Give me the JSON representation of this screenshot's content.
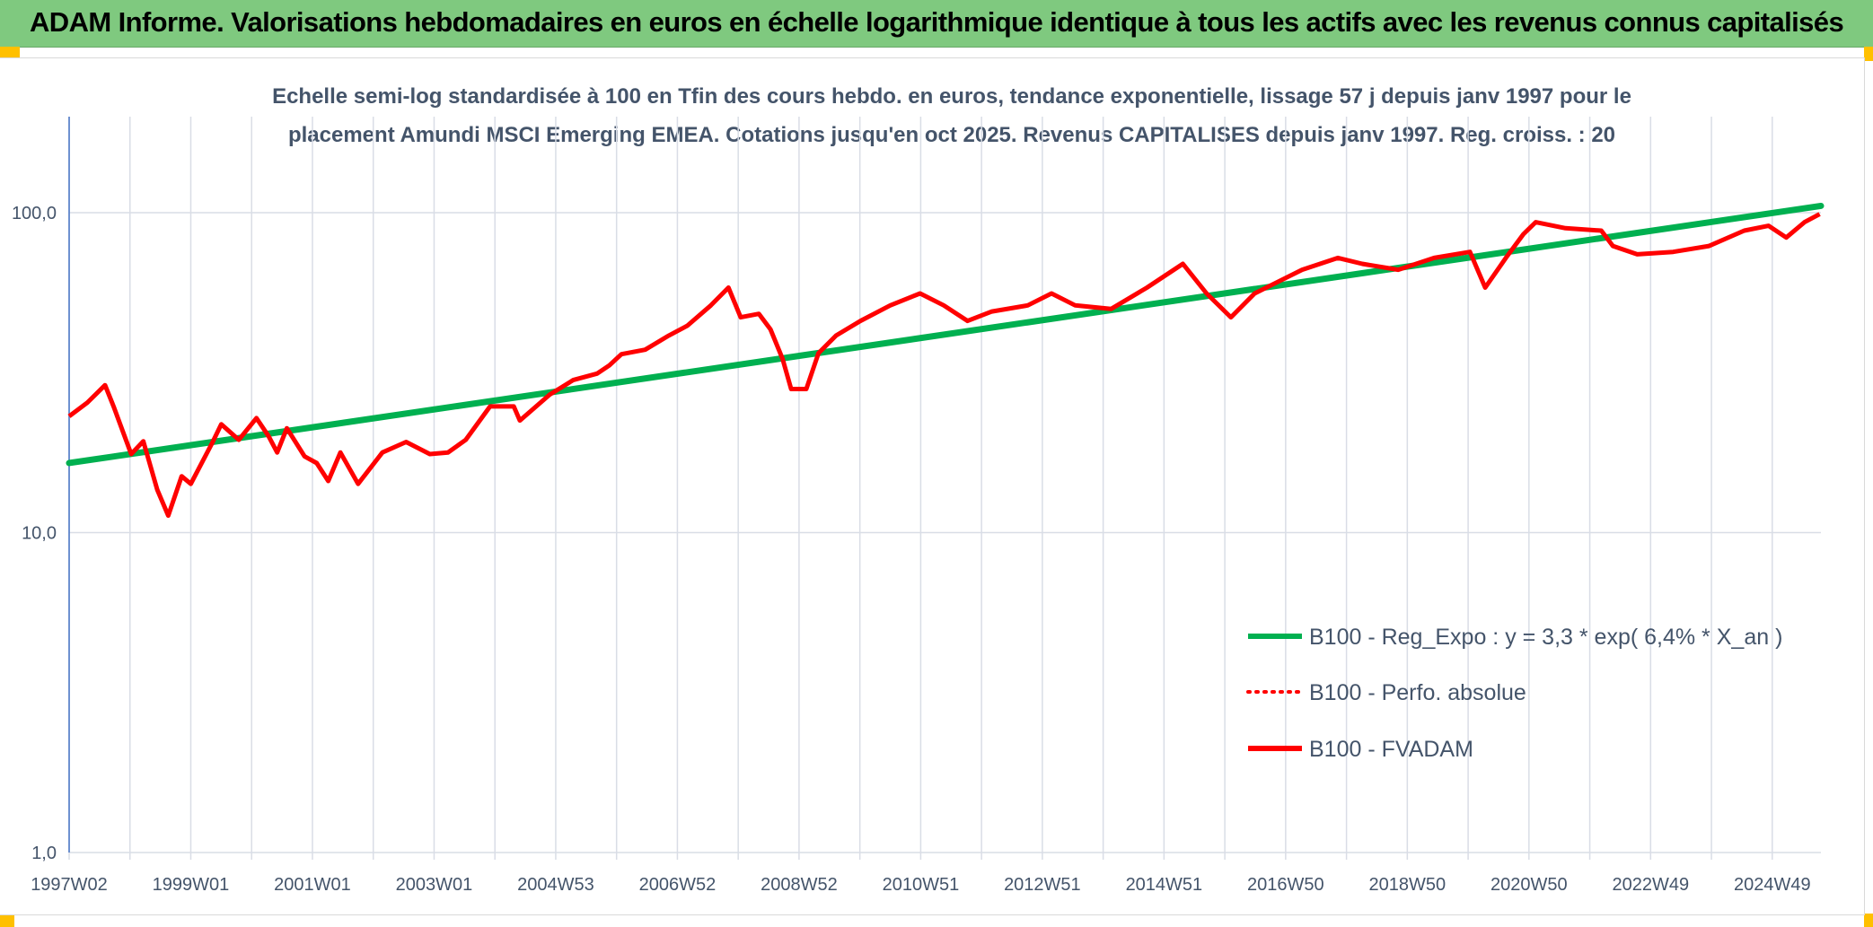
{
  "header": {
    "title": "ADAM Informe. Valorisations hebdomadaires en euros en échelle logarithmique identique à tous les actifs avec les revenus connus capitalisés"
  },
  "chart_data": {
    "type": "line",
    "title_lines": [
      "Echelle semi-log standardisée à 100 en Tfin des cours hebdo. en euros, tendance exponentielle, lissage 57 j depuis janv 1997 pour le",
      "placement Amundi MSCI Emerging EMEA. Cotations jusqu'en oct 2025. Revenus CAPITALISES depuis janv 1997. Reg. croiss. : 20"
    ],
    "y_scale": "log",
    "ylim": [
      1,
      180
    ],
    "y_ticks": [
      {
        "value": 1,
        "label": "1,0"
      },
      {
        "value": 10,
        "label": "10,0"
      },
      {
        "value": 100,
        "label": "100,0"
      }
    ],
    "xlim": [
      1997.0,
      2025.8
    ],
    "x_ticks": [
      {
        "value": 1997.0,
        "label": "1997W02"
      },
      {
        "value": 1999.0,
        "label": "1999W01"
      },
      {
        "value": 2001.0,
        "label": "2001W01"
      },
      {
        "value": 2003.0,
        "label": "2003W01"
      },
      {
        "value": 2005.0,
        "label": "2004W53"
      },
      {
        "value": 2007.0,
        "label": "2006W52"
      },
      {
        "value": 2009.0,
        "label": "2008W52"
      },
      {
        "value": 2011.0,
        "label": "2010W51"
      },
      {
        "value": 2013.0,
        "label": "2012W51"
      },
      {
        "value": 2015.0,
        "label": "2014W51"
      },
      {
        "value": 2017.0,
        "label": "2016W50"
      },
      {
        "value": 2019.0,
        "label": "2018W50"
      },
      {
        "value": 2021.0,
        "label": "2020W50"
      },
      {
        "value": 2023.0,
        "label": "2022W49"
      },
      {
        "value": 2025.0,
        "label": "2024W49"
      }
    ],
    "grid": true,
    "legend_position": "bottom-right",
    "series": [
      {
        "name": "B100 - Reg_Expo : y = 3,3 * exp( 6,4% *  X_an )",
        "color": "#00b050",
        "style": "solid",
        "kind": "exp-trend",
        "start": {
          "x": 1997.0,
          "y": 16.5
        },
        "end": {
          "x": 2025.8,
          "y": 105
        }
      },
      {
        "name": "B100 - Perfo. absolue",
        "color": "#ff0000",
        "style": "dotted",
        "kind": "none",
        "points": []
      },
      {
        "name": "B100 - FVADAM",
        "color": "#ff0000",
        "style": "solid",
        "kind": "points",
        "points": [
          [
            1997.0,
            23.1
          ],
          [
            1997.3,
            25.5
          ],
          [
            1997.59,
            28.9
          ],
          [
            1997.73,
            24.8
          ],
          [
            1998.02,
            17.6
          ],
          [
            1998.22,
            19.3
          ],
          [
            1998.45,
            13.6
          ],
          [
            1998.63,
            11.3
          ],
          [
            1998.85,
            15.0
          ],
          [
            1999.0,
            14.2
          ],
          [
            1999.36,
            19.2
          ],
          [
            1999.5,
            21.8
          ],
          [
            1999.79,
            19.5
          ],
          [
            2000.08,
            22.8
          ],
          [
            2000.28,
            20.0
          ],
          [
            2000.42,
            17.8
          ],
          [
            2000.58,
            21.2
          ],
          [
            2000.87,
            17.3
          ],
          [
            2001.07,
            16.5
          ],
          [
            2001.26,
            14.5
          ],
          [
            2001.46,
            17.8
          ],
          [
            2001.75,
            14.2
          ],
          [
            2002.15,
            17.8
          ],
          [
            2002.54,
            19.2
          ],
          [
            2002.93,
            17.6
          ],
          [
            2003.23,
            17.8
          ],
          [
            2003.52,
            19.5
          ],
          [
            2003.92,
            24.8
          ],
          [
            2004.31,
            24.8
          ],
          [
            2004.41,
            22.4
          ],
          [
            2004.9,
            27.0
          ],
          [
            2005.29,
            30.0
          ],
          [
            2005.68,
            31.4
          ],
          [
            2005.88,
            33.3
          ],
          [
            2006.08,
            36.1
          ],
          [
            2006.47,
            37.3
          ],
          [
            2006.86,
            41.3
          ],
          [
            2007.16,
            44.3
          ],
          [
            2007.55,
            51.3
          ],
          [
            2007.84,
            58.3
          ],
          [
            2008.04,
            47.1
          ],
          [
            2008.34,
            48.3
          ],
          [
            2008.53,
            43.2
          ],
          [
            2008.73,
            34.9
          ],
          [
            2008.87,
            28.1
          ],
          [
            2009.12,
            28.1
          ],
          [
            2009.32,
            36.4
          ],
          [
            2009.61,
            41.3
          ],
          [
            2010.01,
            45.9
          ],
          [
            2010.5,
            51.3
          ],
          [
            2010.99,
            55.9
          ],
          [
            2011.38,
            51.3
          ],
          [
            2011.77,
            45.9
          ],
          [
            2012.17,
            49.1
          ],
          [
            2012.76,
            51.3
          ],
          [
            2013.15,
            55.9
          ],
          [
            2013.54,
            51.3
          ],
          [
            2014.13,
            50.0
          ],
          [
            2014.72,
            58.3
          ],
          [
            2015.31,
            69.2
          ],
          [
            2015.7,
            55.9
          ],
          [
            2016.1,
            47.1
          ],
          [
            2016.49,
            55.9
          ],
          [
            2016.88,
            60.9
          ],
          [
            2017.27,
            66.3
          ],
          [
            2017.86,
            72.2
          ],
          [
            2018.26,
            69.2
          ],
          [
            2018.85,
            66.3
          ],
          [
            2019.44,
            72.2
          ],
          [
            2020.03,
            75.4
          ],
          [
            2020.28,
            58.3
          ],
          [
            2020.62,
            72.2
          ],
          [
            2020.91,
            85.7
          ],
          [
            2021.11,
            93.4
          ],
          [
            2021.6,
            89.4
          ],
          [
            2022.19,
            87.9
          ],
          [
            2022.38,
            78.7
          ],
          [
            2022.78,
            74.1
          ],
          [
            2023.37,
            75.4
          ],
          [
            2023.96,
            78.7
          ],
          [
            2024.54,
            87.9
          ],
          [
            2024.94,
            91.0
          ],
          [
            2025.23,
            83.6
          ],
          [
            2025.53,
            93.4
          ],
          [
            2025.78,
            99.0
          ]
        ]
      }
    ]
  }
}
